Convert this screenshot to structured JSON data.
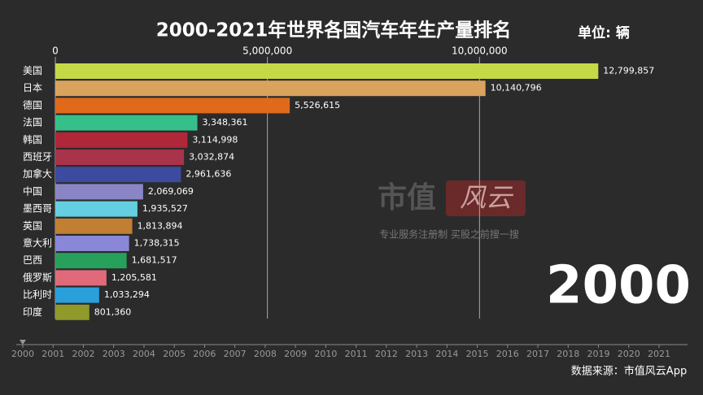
{
  "chart_data": {
    "type": "barh",
    "title": "2000-2021年世界各国汽车年生产量排名",
    "unit": "单位: 辆",
    "categories": [
      "美国",
      "日本",
      "德国",
      "法国",
      "韩国",
      "西班牙",
      "加拿大",
      "中国",
      "墨西哥",
      "英国",
      "意大利",
      "巴西",
      "俄罗斯",
      "比利时",
      "印度"
    ],
    "values": [
      12799857,
      10140796,
      5526615,
      3348361,
      3114998,
      3032874,
      2961636,
      2069069,
      1935527,
      1813894,
      1738315,
      1681517,
      1205581,
      1033294,
      801360
    ],
    "value_labels": [
      "12,799,857",
      "10,140,796",
      "5,526,615",
      "3,348,361",
      "3,114,998",
      "3,032,874",
      "2,961,636",
      "2,069,069",
      "1,935,527",
      "1,813,894",
      "1,738,315",
      "1,681,517",
      "1,205,581",
      "1,033,294",
      "801,360"
    ],
    "colors": [
      "#c5d946",
      "#d9a35d",
      "#e06a1a",
      "#35c08a",
      "#b0273a",
      "#a8334a",
      "#3c4aa0",
      "#8a86c6",
      "#63cfe0",
      "#c07f33",
      "#8a86d8",
      "#27a05c",
      "#e06a7a",
      "#2aa0da",
      "#8f9a2a"
    ],
    "xlim": [
      0,
      15000000
    ],
    "xticks": [
      0,
      {
        "value": 5000000,
        "label": "5,000,000"
      },
      {
        "value": 10000000,
        "label": "10,000,000"
      }
    ],
    "grid": true,
    "timeline": [
      "2000",
      "2001",
      "2002",
      "2003",
      "2004",
      "2005",
      "2006",
      "2007",
      "2008",
      "2009",
      "2010",
      "2011",
      "2012",
      "2013",
      "2014",
      "2015",
      "2016",
      "2017",
      "2018",
      "2019",
      "2020",
      "2021"
    ],
    "current_year": "2000",
    "watermark": "市值",
    "watermark_logo": "风云",
    "slogan": "专业服务注册制 买股之前搜一搜",
    "source": "数据来源：市值风云App"
  }
}
